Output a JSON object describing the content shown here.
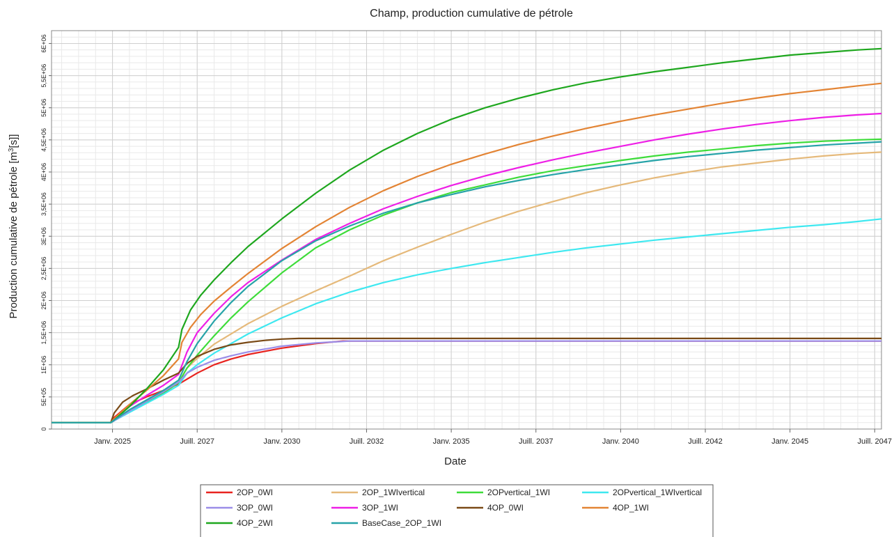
{
  "chart_data": {
    "type": "line",
    "title": "Champ, production cumulative de pétrole",
    "xlabel": "Date",
    "ylabel": "Production cumulative de pétrole [m",
    "ylabel_sup": "3",
    "ylabel_suffix": "[s]]",
    "x_ticks": [
      {
        "label": "Janv. 2025",
        "year": 2025.0
      },
      {
        "label": "Juill. 2027",
        "year": 2027.5
      },
      {
        "label": "Janv. 2030",
        "year": 2030.0
      },
      {
        "label": "Juill. 2032",
        "year": 2032.5
      },
      {
        "label": "Janv. 2035",
        "year": 2035.0
      },
      {
        "label": "Juill. 2037",
        "year": 2037.5
      },
      {
        "label": "Janv. 2040",
        "year": 2040.0
      },
      {
        "label": "Juill. 2042",
        "year": 2042.5
      },
      {
        "label": "Janv. 2045",
        "year": 2045.0
      },
      {
        "label": "Juill. 2047",
        "year": 2047.5
      }
    ],
    "xlim": [
      2023.2,
      2047.7
    ],
    "ylim": [
      0,
      6200000
    ],
    "y_ticks": [
      {
        "label": "0",
        "value": 0
      },
      {
        "label": "5E+05",
        "value": 500000
      },
      {
        "label": "1E+06",
        "value": 1000000
      },
      {
        "label": "1,5E+06",
        "value": 1500000
      },
      {
        "label": "2E+06",
        "value": 2000000
      },
      {
        "label": "2,5E+06",
        "value": 2500000
      },
      {
        "label": "3E+06",
        "value": 3000000
      },
      {
        "label": "3,5E+06",
        "value": 3500000
      },
      {
        "label": "4E+06",
        "value": 4000000
      },
      {
        "label": "4,5E+06",
        "value": 4500000
      },
      {
        "label": "5E+06",
        "value": 5000000
      },
      {
        "label": "5,5E+06",
        "value": 5500000
      },
      {
        "label": "6E+06",
        "value": 6000000
      }
    ],
    "grid": true,
    "legend_position": "bottom",
    "series": [
      {
        "name": "2OP_0WI",
        "color": "#e8231f",
        "x": [
          2023.2,
          2024.95,
          2025.05,
          2025.5,
          2026.0,
          2026.5,
          2026.95,
          2027.05,
          2027.5,
          2028.0,
          2028.5,
          2029.0,
          2030.0,
          2031.0,
          2031.8,
          2032.5,
          2047.7
        ],
        "y": [
          100000,
          100000,
          180000,
          380000,
          500000,
          600000,
          700000,
          730000,
          870000,
          1000000,
          1090000,
          1160000,
          1260000,
          1330000,
          1370000,
          1370000,
          1370000
        ]
      },
      {
        "name": "2OP_1WIvertical",
        "color": "#e5b97a",
        "x": [
          2023.2,
          2024.95,
          2025.05,
          2025.5,
          2026.0,
          2026.5,
          2026.95,
          2027.2,
          2027.5,
          2028.0,
          2029.0,
          2030.0,
          2031.0,
          2032.0,
          2033.0,
          2034.0,
          2035.0,
          2036.0,
          2037.0,
          2038.0,
          2039.0,
          2040.0,
          2041.0,
          2042.0,
          2043.0,
          2044.0,
          2045.0,
          2046.0,
          2047.0,
          2047.7
        ],
        "y": [
          100000,
          100000,
          150000,
          280000,
          410000,
          560000,
          720000,
          950000,
          1100000,
          1320000,
          1640000,
          1910000,
          2150000,
          2380000,
          2620000,
          2830000,
          3030000,
          3220000,
          3390000,
          3540000,
          3680000,
          3800000,
          3910000,
          4000000,
          4080000,
          4140000,
          4200000,
          4250000,
          4290000,
          4310000
        ]
      },
      {
        "name": "2OPvertical_1WI",
        "color": "#3edc3a",
        "x": [
          2023.2,
          2024.95,
          2025.05,
          2025.5,
          2026.0,
          2026.5,
          2026.95,
          2027.2,
          2027.5,
          2028.0,
          2028.5,
          2029.0,
          2030.0,
          2031.0,
          2032.0,
          2033.0,
          2034.0,
          2035.0,
          2036.0,
          2037.0,
          2038.0,
          2039.0,
          2040.0,
          2041.0,
          2042.0,
          2043.0,
          2044.0,
          2045.0,
          2046.0,
          2047.0,
          2047.7
        ],
        "y": [
          100000,
          100000,
          130000,
          280000,
          420000,
          560000,
          720000,
          950000,
          1150000,
          1450000,
          1730000,
          1980000,
          2430000,
          2820000,
          3100000,
          3330000,
          3520000,
          3680000,
          3800000,
          3920000,
          4020000,
          4100000,
          4180000,
          4250000,
          4310000,
          4360000,
          4410000,
          4450000,
          4480000,
          4500000,
          4510000
        ]
      },
      {
        "name": "2OPvertical_1WIvertical",
        "color": "#3ee8f0",
        "x": [
          2023.2,
          2024.95,
          2025.05,
          2025.5,
          2026.0,
          2026.5,
          2026.95,
          2027.2,
          2027.5,
          2028.0,
          2029.0,
          2030.0,
          2031.0,
          2032.0,
          2033.0,
          2034.0,
          2035.0,
          2036.0,
          2037.0,
          2038.0,
          2039.0,
          2040.0,
          2041.0,
          2042.0,
          2043.0,
          2044.0,
          2045.0,
          2046.0,
          2047.0,
          2047.7
        ],
        "y": [
          100000,
          100000,
          130000,
          260000,
          400000,
          540000,
          680000,
          870000,
          1000000,
          1180000,
          1480000,
          1730000,
          1950000,
          2130000,
          2280000,
          2400000,
          2500000,
          2590000,
          2670000,
          2750000,
          2820000,
          2880000,
          2940000,
          2990000,
          3040000,
          3090000,
          3140000,
          3180000,
          3230000,
          3270000
        ]
      },
      {
        "name": "3OP_0WI",
        "color": "#9b8de8",
        "x": [
          2023.2,
          2024.95,
          2025.05,
          2025.5,
          2026.0,
          2026.5,
          2026.95,
          2027.2,
          2027.5,
          2028.0,
          2028.5,
          2029.0,
          2030.0,
          2031.0,
          2032.0,
          2047.7
        ],
        "y": [
          100000,
          100000,
          130000,
          280000,
          430000,
          580000,
          730000,
          870000,
          960000,
          1070000,
          1140000,
          1200000,
          1290000,
          1340000,
          1370000,
          1370000
        ]
      },
      {
        "name": "3OP_1WI",
        "color": "#ee1fe6",
        "x": [
          2023.2,
          2024.95,
          2025.05,
          2025.5,
          2026.0,
          2026.5,
          2026.95,
          2027.2,
          2027.5,
          2028.0,
          2028.5,
          2029.0,
          2030.0,
          2031.0,
          2032.0,
          2033.0,
          2034.0,
          2035.0,
          2036.0,
          2037.0,
          2038.0,
          2039.0,
          2040.0,
          2041.0,
          2042.0,
          2043.0,
          2044.0,
          2045.0,
          2046.0,
          2047.0,
          2047.7
        ],
        "y": [
          100000,
          100000,
          150000,
          350000,
          520000,
          680000,
          850000,
          1200000,
          1500000,
          1800000,
          2060000,
          2280000,
          2630000,
          2950000,
          3200000,
          3430000,
          3620000,
          3790000,
          3940000,
          4070000,
          4190000,
          4300000,
          4400000,
          4500000,
          4590000,
          4670000,
          4740000,
          4800000,
          4850000,
          4890000,
          4910000
        ]
      },
      {
        "name": "4OP_0WI",
        "color": "#7a4a16",
        "x": [
          2023.2,
          2024.95,
          2025.05,
          2025.3,
          2025.6,
          2026.0,
          2026.5,
          2026.95,
          2027.2,
          2027.5,
          2028.0,
          2028.5,
          2029.0,
          2029.5,
          2030.0,
          2030.5,
          2047.7
        ],
        "y": [
          100000,
          100000,
          250000,
          420000,
          520000,
          620000,
          760000,
          870000,
          1020000,
          1130000,
          1240000,
          1310000,
          1350000,
          1380000,
          1400000,
          1410000,
          1410000
        ]
      },
      {
        "name": "4OP_1WI",
        "color": "#e38434",
        "x": [
          2023.2,
          2024.95,
          2025.05,
          2025.5,
          2026.0,
          2026.5,
          2026.95,
          2027.05,
          2027.3,
          2027.6,
          2028.0,
          2028.5,
          2029.0,
          2030.0,
          2031.0,
          2032.0,
          2033.0,
          2034.0,
          2035.0,
          2036.0,
          2037.0,
          2038.0,
          2039.0,
          2040.0,
          2041.0,
          2042.0,
          2043.0,
          2044.0,
          2045.0,
          2046.0,
          2047.0,
          2047.7
        ],
        "y": [
          100000,
          100000,
          160000,
          380000,
          600000,
          830000,
          1090000,
          1350000,
          1580000,
          1780000,
          1990000,
          2210000,
          2420000,
          2810000,
          3150000,
          3450000,
          3710000,
          3930000,
          4120000,
          4280000,
          4430000,
          4560000,
          4680000,
          4790000,
          4890000,
          4980000,
          5070000,
          5150000,
          5220000,
          5280000,
          5340000,
          5380000
        ]
      },
      {
        "name": "4OP_2WI",
        "color": "#1ea71e",
        "x": [
          2023.2,
          2024.95,
          2025.05,
          2025.5,
          2026.0,
          2026.5,
          2026.95,
          2027.05,
          2027.3,
          2027.6,
          2028.0,
          2028.5,
          2029.0,
          2030.0,
          2031.0,
          2032.0,
          2033.0,
          2034.0,
          2035.0,
          2036.0,
          2037.0,
          2038.0,
          2039.0,
          2040.0,
          2041.0,
          2042.0,
          2043.0,
          2044.0,
          2045.0,
          2046.0,
          2047.0,
          2047.7
        ],
        "y": [
          100000,
          100000,
          140000,
          350000,
          620000,
          920000,
          1270000,
          1550000,
          1850000,
          2080000,
          2320000,
          2590000,
          2840000,
          3270000,
          3670000,
          4030000,
          4340000,
          4600000,
          4820000,
          5000000,
          5150000,
          5280000,
          5390000,
          5480000,
          5560000,
          5630000,
          5700000,
          5760000,
          5820000,
          5860000,
          5900000,
          5920000
        ]
      },
      {
        "name": "BaseCase_2OP_1WI",
        "color": "#26a3a8",
        "x": [
          2023.2,
          2024.95,
          2025.05,
          2025.5,
          2026.0,
          2026.5,
          2026.95,
          2027.2,
          2027.5,
          2028.0,
          2028.5,
          2029.0,
          2030.0,
          2031.0,
          2032.0,
          2033.0,
          2034.0,
          2035.0,
          2036.0,
          2037.0,
          2038.0,
          2039.0,
          2040.0,
          2041.0,
          2042.0,
          2043.0,
          2044.0,
          2045.0,
          2046.0,
          2047.0,
          2047.7
        ],
        "y": [
          100000,
          100000,
          140000,
          300000,
          450000,
          600000,
          760000,
          1050000,
          1330000,
          1680000,
          1970000,
          2220000,
          2620000,
          2930000,
          3160000,
          3360000,
          3520000,
          3650000,
          3770000,
          3870000,
          3960000,
          4040000,
          4110000,
          4180000,
          4240000,
          4290000,
          4340000,
          4380000,
          4420000,
          4450000,
          4470000
        ]
      }
    ]
  }
}
